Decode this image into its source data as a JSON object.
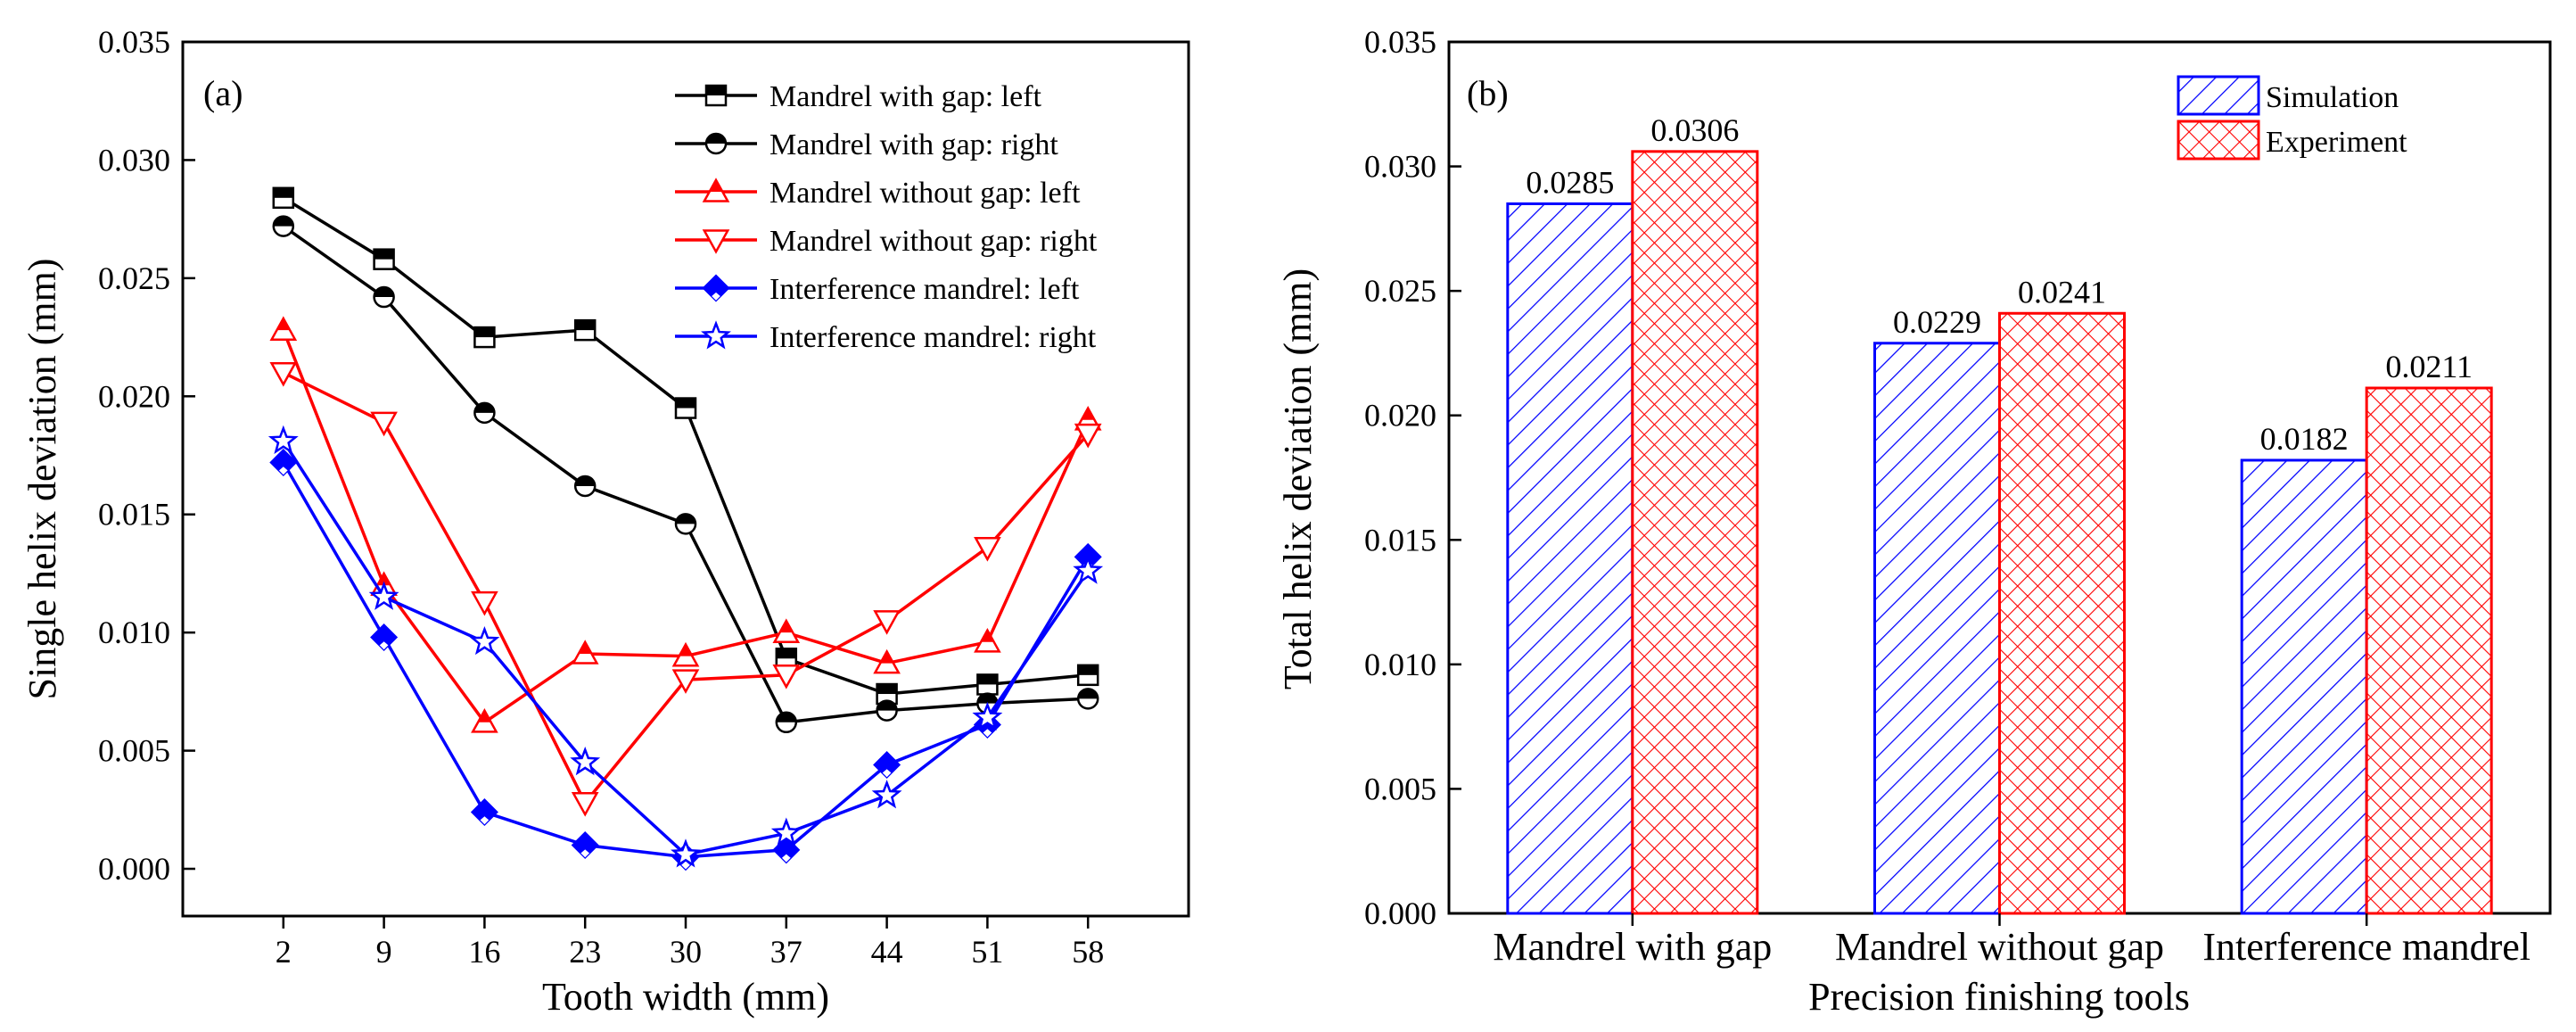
{
  "chart_data": [
    {
      "type": "line",
      "panel_label": "(a)",
      "xlabel": "Tooth width (mm)",
      "ylabel": "Single helix deviation (mm)",
      "x": [
        2,
        9,
        16,
        23,
        30,
        37,
        44,
        51,
        58
      ],
      "x_tick_labels": [
        "2",
        "9",
        "16",
        "23",
        "30",
        "37",
        "44",
        "51",
        "58"
      ],
      "xlim": [
        -5,
        65
      ],
      "ylim": [
        -0.002,
        0.035
      ],
      "y_ticks": [
        0.0,
        0.005,
        0.01,
        0.015,
        0.02,
        0.025,
        0.03,
        0.035
      ],
      "y_tick_labels": [
        "0.000",
        "0.005",
        "0.010",
        "0.015",
        "0.020",
        "0.025",
        "0.030",
        "0.035"
      ],
      "legend_position": "top-right",
      "series": [
        {
          "name": "Mandrel with gap: left",
          "color": "#000000",
          "marker": "square-half",
          "values": [
            0.0284,
            0.0258,
            0.0225,
            0.0228,
            0.0195,
            0.0089,
            0.0074,
            0.0078,
            0.0082
          ]
        },
        {
          "name": "Mandrel with gap: right",
          "color": "#000000",
          "marker": "circle-half",
          "values": [
            0.0272,
            0.0242,
            0.0193,
            0.0162,
            0.0146,
            0.0062,
            0.0067,
            0.007,
            0.0072
          ]
        },
        {
          "name": "Mandrel without gap: left",
          "color": "#ff0000",
          "marker": "triangle-up-half",
          "values": [
            0.0228,
            0.012,
            0.0062,
            0.0091,
            0.009,
            0.01,
            0.0087,
            0.0096,
            0.019
          ]
        },
        {
          "name": "Mandrel without gap: right",
          "color": "#ff0000",
          "marker": "triangle-down",
          "values": [
            0.021,
            0.0189,
            0.0113,
            0.0028,
            0.008,
            0.0082,
            0.0105,
            0.0136,
            0.0184
          ]
        },
        {
          "name": "Interference mandrel: left",
          "color": "#0000ff",
          "marker": "diamond-half",
          "values": [
            0.0172,
            0.0098,
            0.0024,
            0.001,
            0.0005,
            0.0008,
            0.0044,
            0.0061,
            0.0132
          ]
        },
        {
          "name": "Interference mandrel: right",
          "color": "#0000ff",
          "marker": "star",
          "values": [
            0.0181,
            0.0115,
            0.0096,
            0.0045,
            0.0006,
            0.0015,
            0.0031,
            0.0064,
            0.0126
          ]
        }
      ]
    },
    {
      "type": "bar",
      "panel_label": "(b)",
      "xlabel": "Precision finishing tools",
      "ylabel": "Total helix deviation (mm)",
      "categories": [
        "Mandrel with gap",
        "Mandrel without gap",
        "Interference mandrel"
      ],
      "ylim": [
        0,
        0.035
      ],
      "y_ticks": [
        0.0,
        0.005,
        0.01,
        0.015,
        0.02,
        0.025,
        0.03,
        0.035
      ],
      "y_tick_labels": [
        "0.000",
        "0.005",
        "0.010",
        "0.015",
        "0.020",
        "0.025",
        "0.030",
        "0.035"
      ],
      "legend_position": "top-right",
      "series": [
        {
          "name": "Simulation",
          "color": "#0000ff",
          "pattern": "diagonal-hatch",
          "values": [
            0.0285,
            0.0229,
            0.0182
          ],
          "labels": [
            "0.0285",
            "0.0229",
            "0.0182"
          ]
        },
        {
          "name": "Experiment",
          "color": "#ff0000",
          "pattern": "cross-hatch",
          "values": [
            0.0306,
            0.0241,
            0.0211
          ],
          "labels": [
            "0.0306",
            "0.0241",
            "0.0211"
          ]
        }
      ]
    }
  ]
}
